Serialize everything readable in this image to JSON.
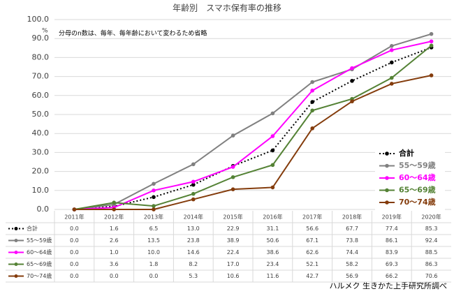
{
  "chart_data": {
    "type": "line",
    "title": "年齢別　スマホ保有率の推移",
    "y_unit": "%",
    "annotation": "分母のn数は、毎年、毎年齢において変わるため省略",
    "source": "ハルメク 生きかた上手研究所調べ",
    "categories": [
      "2011年",
      "2012年",
      "2013年",
      "2014年",
      "2015年",
      "2016年",
      "2017年",
      "2018年",
      "2019年",
      "2020年"
    ],
    "ylim": [
      0,
      100
    ],
    "yticks": [
      {
        "value": 0,
        "label": "0.0"
      },
      {
        "value": 10,
        "label": "10.0"
      },
      {
        "value": 20,
        "label": "20.0"
      },
      {
        "value": 30,
        "label": "30.0"
      },
      {
        "value": 40,
        "label": "40.0"
      },
      {
        "value": 50,
        "label": "50.0"
      },
      {
        "value": 60,
        "label": "60.0"
      },
      {
        "value": 70,
        "label": "70.0"
      },
      {
        "value": 80,
        "label": "80.0"
      },
      {
        "value": 90,
        "label": "90.0"
      },
      {
        "value": 100,
        "label": "100.0"
      }
    ],
    "grid": true,
    "legend": "right",
    "series": [
      {
        "name": "合計",
        "color": "#000000",
        "line_style": "dotted",
        "values": [
          0.0,
          1.6,
          6.5,
          13.0,
          22.9,
          31.1,
          56.6,
          67.7,
          77.4,
          85.3
        ],
        "value_labels": [
          "0.0",
          "1.6",
          "6.5",
          "13.0",
          "22.9",
          "31.1",
          "56.6",
          "67.7",
          "77.4",
          "85.3"
        ]
      },
      {
        "name": "55〜59歳",
        "color": "#808080",
        "line_style": "solid",
        "values": [
          0.0,
          2.6,
          13.5,
          23.8,
          38.9,
          50.6,
          67.1,
          73.8,
          86.1,
          92.4
        ],
        "value_labels": [
          "0.0",
          "2.6",
          "13.5",
          "23.8",
          "38.9",
          "50.6",
          "67.1",
          "73.8",
          "86.1",
          "92.4"
        ]
      },
      {
        "name": "60〜64歳",
        "color": "#ff00ff",
        "line_style": "solid",
        "values": [
          0.0,
          1.0,
          10.0,
          14.6,
          22.4,
          38.6,
          62.6,
          74.4,
          83.9,
          88.5
        ],
        "value_labels": [
          "0.0",
          "1.0",
          "10.0",
          "14.6",
          "22.4",
          "38.6",
          "62.6",
          "74.4",
          "83.9",
          "88.5"
        ]
      },
      {
        "name": "65〜69歳",
        "color": "#548235",
        "line_style": "solid",
        "values": [
          0.0,
          3.6,
          1.8,
          8.2,
          17.0,
          23.4,
          52.1,
          58.2,
          69.3,
          86.3
        ],
        "value_labels": [
          "0.0",
          "3.6",
          "1.8",
          "8.2",
          "17.0",
          "23.4",
          "52.1",
          "58.2",
          "69.3",
          "86.3"
        ]
      },
      {
        "name": "70〜74歳",
        "color": "#843c0c",
        "line_style": "solid",
        "values": [
          0.0,
          0.0,
          0.0,
          5.3,
          10.6,
          11.6,
          42.7,
          56.9,
          66.2,
          70.6
        ],
        "value_labels": [
          "0.0",
          "0.0",
          "0.0",
          "5.3",
          "10.6",
          "11.6",
          "42.7",
          "56.9",
          "66.2",
          "70.6"
        ]
      }
    ]
  }
}
